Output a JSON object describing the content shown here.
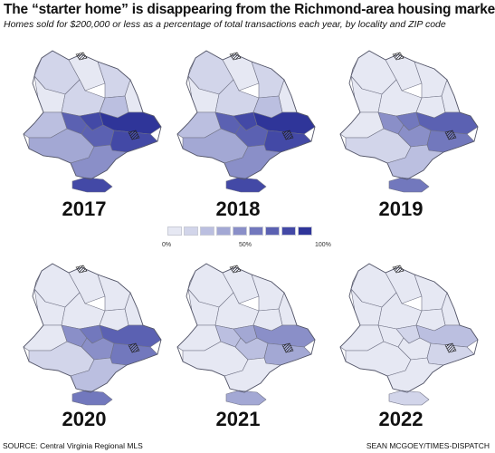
{
  "header": {
    "title": "The “starter home” is disappearing from the Richmond-area housing market.",
    "subtitle": "Homes sold for $200,000 or less as a percentage of total transactions each year, by locality and ZIP code"
  },
  "legend": {
    "colors": [
      "#e6e8f3",
      "#d2d5ea",
      "#bbbfe0",
      "#a3a8d4",
      "#8a8fc8",
      "#7278bd",
      "#5b61b2",
      "#4349a6",
      "#2f3599"
    ],
    "labels": {
      "min": "0%",
      "mid": "50%",
      "max": "100%"
    }
  },
  "maps": [
    {
      "year": "2017",
      "level": 3
    },
    {
      "year": "2018",
      "level": 3
    },
    {
      "year": "2019",
      "level": 2
    },
    {
      "year": "2020",
      "level": 2
    },
    {
      "year": "2021",
      "level": 1
    },
    {
      "year": "2022",
      "level": 0
    }
  ],
  "footer": {
    "source": "SOURCE: Central Virginia Regional MLS",
    "credit": "SEAN MCGOEY/TIMES-DISPATCH"
  }
}
